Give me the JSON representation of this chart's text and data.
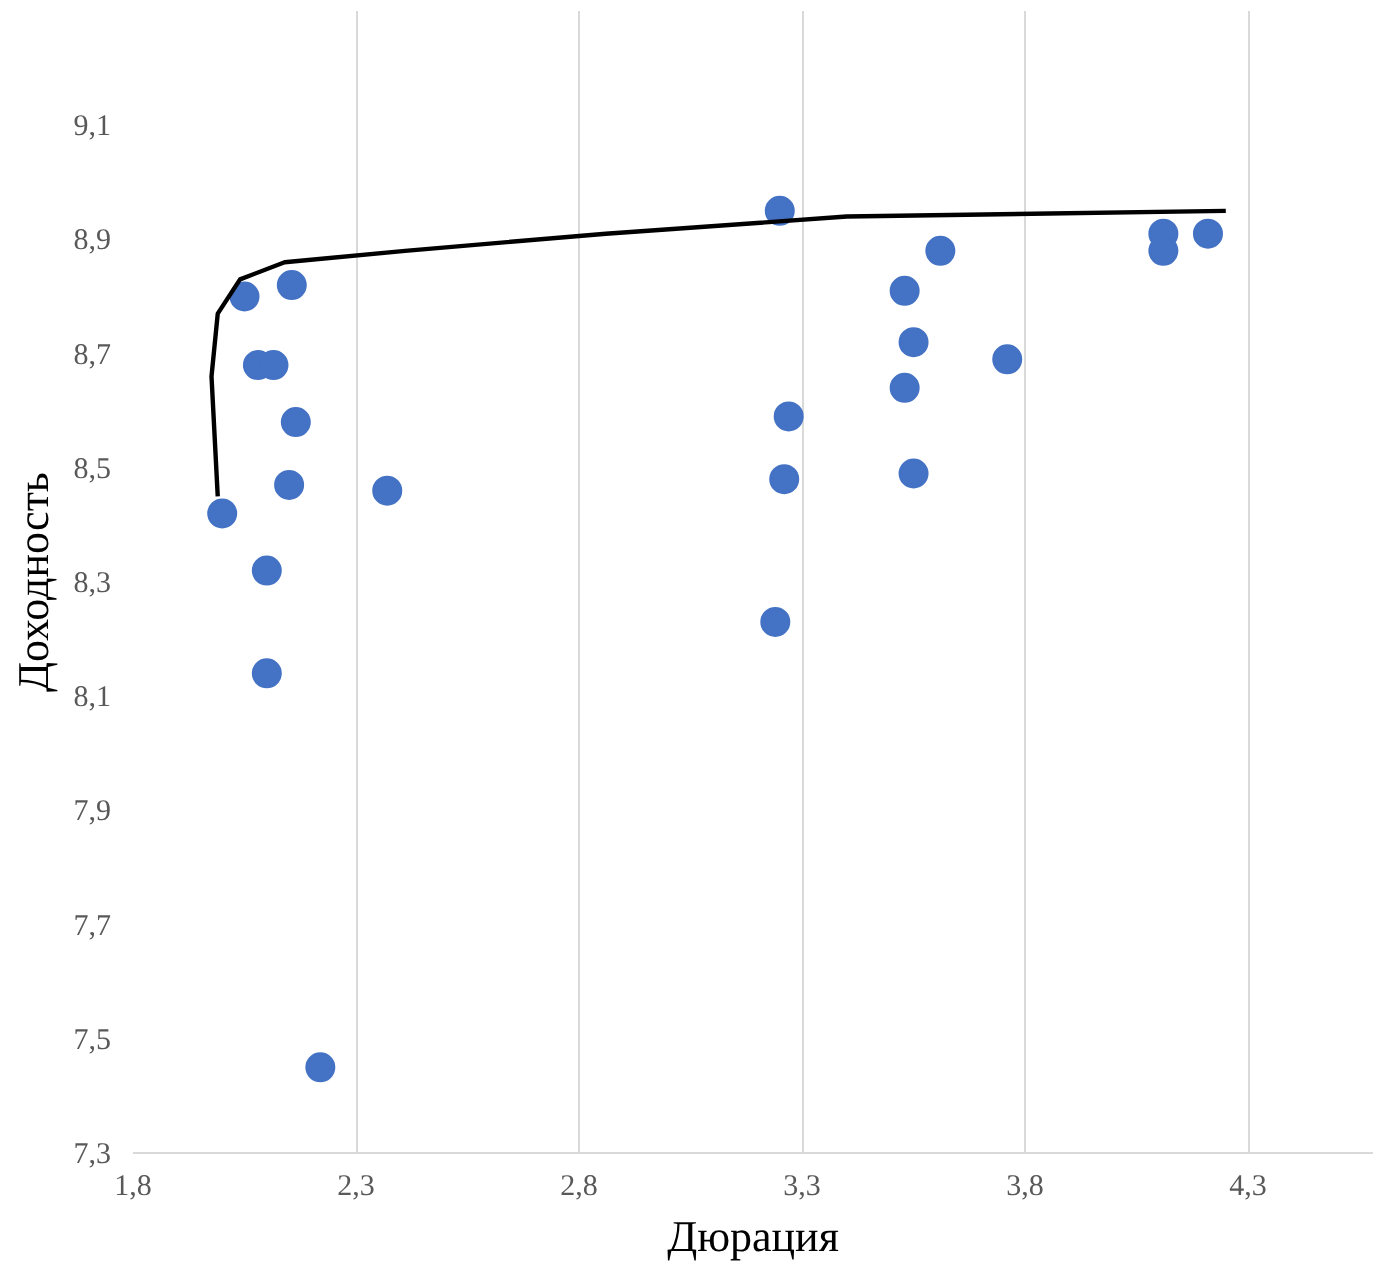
{
  "chart_data": {
    "type": "scatter",
    "xlabel": "Дюрация",
    "ylabel": "Доходность",
    "xlim": [
      1.8,
      4.58
    ],
    "ylim": [
      7.3,
      9.3
    ],
    "xticks": [
      {
        "value": 1.8,
        "label": "1,8"
      },
      {
        "value": 2.3,
        "label": "2,3"
      },
      {
        "value": 2.8,
        "label": "2,8"
      },
      {
        "value": 3.3,
        "label": "3,3"
      },
      {
        "value": 3.8,
        "label": "3,8"
      },
      {
        "value": 4.3,
        "label": "4,3"
      }
    ],
    "yticks": [
      {
        "value": 7.3,
        "label": "7,3"
      },
      {
        "value": 7.5,
        "label": "7,5"
      },
      {
        "value": 7.7,
        "label": "7,7"
      },
      {
        "value": 7.9,
        "label": "7,9"
      },
      {
        "value": 8.1,
        "label": "8,1"
      },
      {
        "value": 8.3,
        "label": "8,3"
      },
      {
        "value": 8.5,
        "label": "8,5"
      },
      {
        "value": 8.7,
        "label": "8,7"
      },
      {
        "value": 8.9,
        "label": "8,9"
      },
      {
        "value": 9.1,
        "label": "9,1"
      }
    ],
    "grid": "x",
    "series": [
      {
        "marker": "circle",
        "color": "#4472c4",
        "x": [
          2.0,
          2.05,
          2.08,
          2.115,
          2.156,
          2.165,
          2.15,
          2.1,
          2.1,
          2.37,
          2.22,
          3.25,
          3.27,
          3.26,
          3.24,
          3.53,
          3.61,
          3.55,
          3.53,
          3.55,
          3.76,
          4.11,
          4.11,
          4.21
        ],
        "values": [
          8.42,
          8.8,
          8.68,
          8.68,
          8.82,
          8.58,
          8.47,
          8.32,
          8.14,
          8.46,
          7.45,
          8.95,
          8.59,
          8.48,
          8.23,
          8.81,
          8.88,
          8.72,
          8.64,
          8.49,
          8.69,
          8.91,
          8.88,
          8.91
        ]
      },
      {
        "type": "line",
        "color": "#000000",
        "x": [
          1.99,
          1.976,
          1.99,
          2.04,
          2.14,
          2.41,
          2.86,
          3.4,
          4.25
        ],
        "values": [
          8.45,
          8.66,
          8.77,
          8.83,
          8.86,
          8.88,
          8.91,
          8.94,
          8.95
        ]
      }
    ]
  }
}
